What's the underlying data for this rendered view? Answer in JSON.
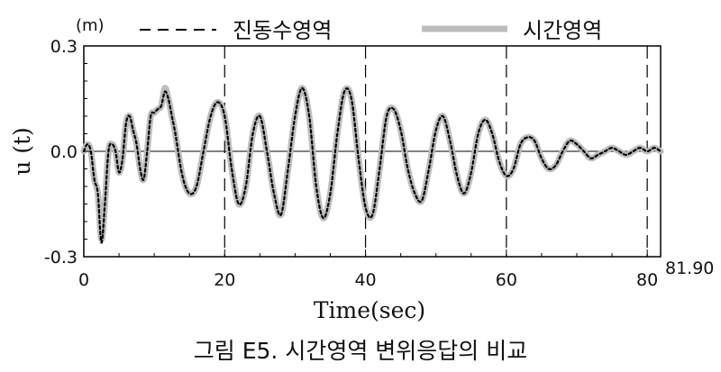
{
  "caption": "그림 E5. 시간영역 변위응답의 비교",
  "chart_data": {
    "type": "line",
    "unit_label": "(m)",
    "xlabel": "Time(sec)",
    "ylabel": "u (t)",
    "xlim": [
      0,
      81.9
    ],
    "ylim": [
      -0.3,
      0.3
    ],
    "x_ticks": [
      0,
      20,
      40,
      60,
      80
    ],
    "x_tick_labels": [
      "0",
      "20",
      "40",
      "60",
      "80"
    ],
    "x_end_label": "81.90",
    "y_ticks": [
      -0.3,
      0.0,
      0.3
    ],
    "y_tick_labels": [
      "-0.3",
      "0.0",
      "0.3"
    ],
    "vertical_dashed_lines": [
      20,
      40,
      60,
      80
    ],
    "zero_line": true,
    "grid": false,
    "legend_position": "top",
    "series": [
      {
        "name": "진동수영역",
        "style": "dashed",
        "color": "#000000",
        "x": [
          0,
          0.5,
          1.0,
          1.5,
          2.0,
          2.5,
          3.0,
          3.5,
          4.0,
          4.5,
          5.0,
          5.5,
          6.0,
          6.5,
          7.0,
          7.5,
          8.0,
          8.5,
          9.0,
          9.5,
          10.0,
          10.5,
          11.0,
          11.5,
          12.0,
          12.5,
          13.0,
          14.0,
          15.0,
          16.0,
          17.0,
          18.0,
          19.0,
          20.0,
          21.0,
          22.0,
          23.0,
          24.0,
          25.0,
          26.0,
          27.0,
          28.0,
          29.0,
          30.0,
          31.0,
          32.0,
          33.0,
          34.0,
          35.0,
          36.0,
          37.0,
          38.0,
          39.0,
          40.0,
          41.0,
          42.0,
          43.0,
          44.0,
          45.0,
          46.0,
          47.0,
          48.0,
          49.0,
          50.0,
          51.0,
          52.0,
          53.0,
          54.0,
          55.0,
          56.0,
          57.0,
          58.0,
          59.0,
          60.0,
          61.0,
          62.0,
          63.0,
          64.0,
          65.0,
          66.0,
          67.0,
          68.0,
          69.0,
          70.0,
          71.0,
          72.0,
          73.0,
          74.0,
          75.0,
          76.0,
          77.0,
          78.0,
          79.0,
          80.0,
          81.0,
          81.9
        ],
        "y": [
          0.0,
          0.02,
          0.0,
          -0.08,
          -0.12,
          -0.26,
          -0.15,
          0.0,
          0.02,
          0.0,
          -0.06,
          -0.02,
          0.08,
          0.1,
          0.06,
          0.02,
          -0.05,
          -0.08,
          0.0,
          0.1,
          0.11,
          0.12,
          0.13,
          0.17,
          0.15,
          0.1,
          0.05,
          -0.07,
          -0.12,
          -0.1,
          0.0,
          0.1,
          0.14,
          0.1,
          -0.05,
          -0.15,
          -0.1,
          0.05,
          0.1,
          0.0,
          -0.12,
          -0.18,
          -0.05,
          0.1,
          0.18,
          0.1,
          -0.1,
          -0.19,
          -0.12,
          0.05,
          0.17,
          0.15,
          -0.02,
          -0.16,
          -0.18,
          -0.05,
          0.1,
          0.12,
          0.06,
          -0.05,
          -0.12,
          -0.14,
          -0.05,
          0.06,
          0.1,
          0.03,
          -0.07,
          -0.12,
          -0.06,
          0.05,
          0.09,
          0.05,
          -0.03,
          -0.07,
          -0.05,
          0.02,
          0.04,
          0.03,
          -0.02,
          -0.05,
          -0.04,
          0.0,
          0.03,
          0.02,
          0.0,
          -0.02,
          -0.01,
          0.0,
          0.01,
          0.0,
          -0.01,
          0.0,
          0.01,
          0.0,
          0.01,
          0.0
        ]
      },
      {
        "name": "시간영역",
        "style": "solid-thick",
        "color": "#bdbdbd",
        "x": [
          0,
          0.5,
          1.0,
          1.5,
          2.0,
          2.5,
          3.0,
          3.5,
          4.0,
          4.5,
          5.0,
          5.5,
          6.0,
          6.5,
          7.0,
          7.5,
          8.0,
          8.5,
          9.0,
          9.5,
          10.0,
          10.5,
          11.0,
          11.5,
          12.0,
          12.5,
          13.0,
          14.0,
          15.0,
          16.0,
          17.0,
          18.0,
          19.0,
          20.0,
          21.0,
          22.0,
          23.0,
          24.0,
          25.0,
          26.0,
          27.0,
          28.0,
          29.0,
          30.0,
          31.0,
          32.0,
          33.0,
          34.0,
          35.0,
          36.0,
          37.0,
          38.0,
          39.0,
          40.0,
          41.0,
          42.0,
          43.0,
          44.0,
          45.0,
          46.0,
          47.0,
          48.0,
          49.0,
          50.0,
          51.0,
          52.0,
          53.0,
          54.0,
          55.0,
          56.0,
          57.0,
          58.0,
          59.0,
          60.0,
          61.0,
          62.0,
          63.0,
          64.0,
          65.0,
          66.0,
          67.0,
          68.0,
          69.0,
          70.0,
          71.0,
          72.0,
          73.0,
          74.0,
          75.0,
          76.0,
          77.0,
          78.0,
          79.0,
          80.0,
          81.0,
          81.9
        ],
        "y": [
          0.0,
          0.02,
          0.0,
          -0.08,
          -0.12,
          -0.25,
          -0.15,
          0.0,
          0.02,
          0.0,
          -0.06,
          -0.02,
          0.08,
          0.1,
          0.06,
          0.02,
          -0.05,
          -0.08,
          0.0,
          0.1,
          0.11,
          0.12,
          0.13,
          0.18,
          0.15,
          0.1,
          0.05,
          -0.07,
          -0.12,
          -0.1,
          0.0,
          0.1,
          0.14,
          0.1,
          -0.05,
          -0.15,
          -0.1,
          0.05,
          0.1,
          0.0,
          -0.12,
          -0.18,
          -0.05,
          0.1,
          0.18,
          0.1,
          -0.1,
          -0.19,
          -0.12,
          0.05,
          0.17,
          0.15,
          -0.02,
          -0.16,
          -0.18,
          -0.05,
          0.1,
          0.12,
          0.06,
          -0.05,
          -0.12,
          -0.14,
          -0.05,
          0.06,
          0.1,
          0.03,
          -0.07,
          -0.12,
          -0.06,
          0.05,
          0.09,
          0.05,
          -0.03,
          -0.07,
          -0.05,
          0.02,
          0.04,
          0.03,
          -0.02,
          -0.05,
          -0.04,
          0.0,
          0.03,
          0.02,
          0.0,
          -0.02,
          -0.01,
          0.0,
          0.01,
          0.0,
          -0.01,
          0.0,
          0.01,
          0.0,
          0.01,
          0.0
        ]
      }
    ]
  }
}
